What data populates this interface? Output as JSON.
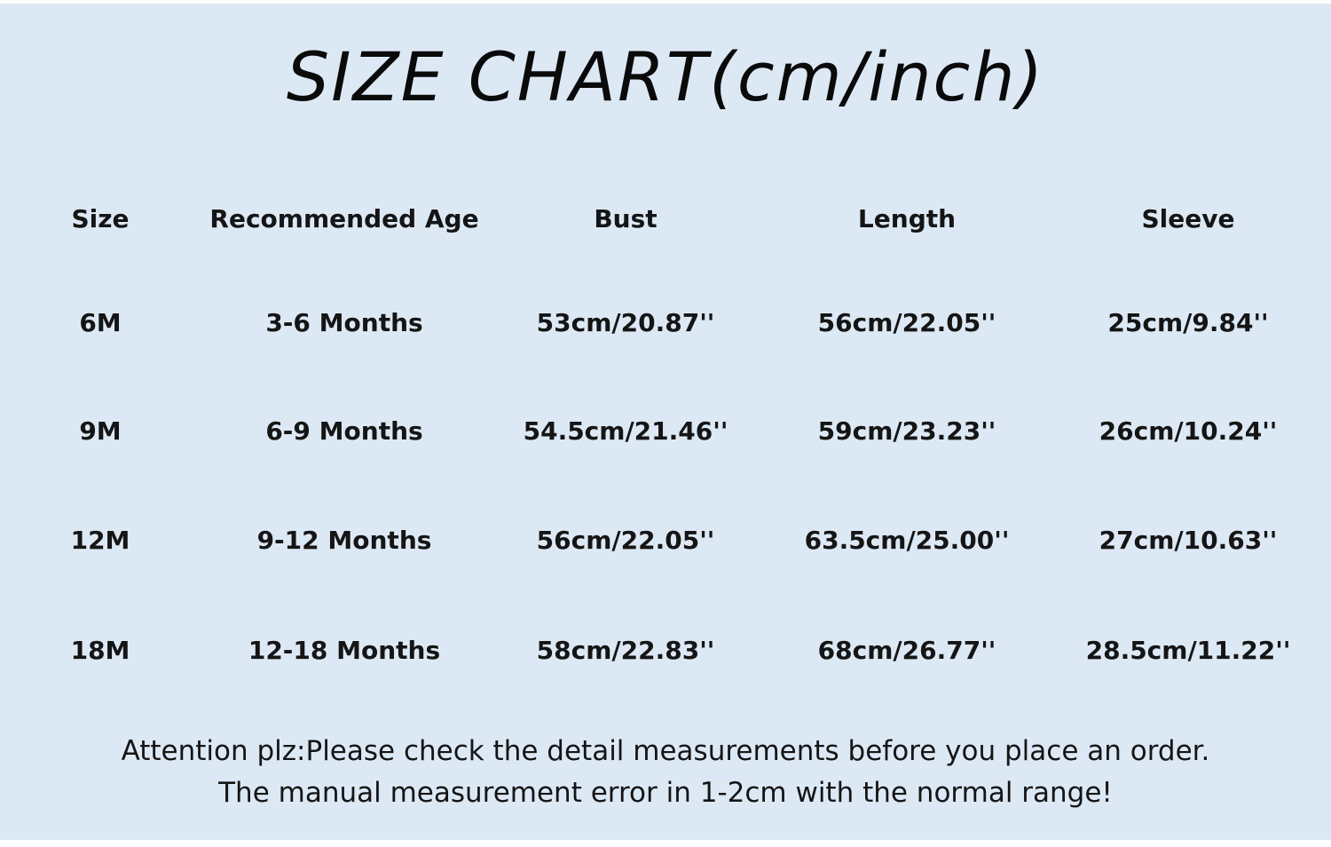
{
  "title": "SIZE CHART(cm/inch)",
  "headers": [
    "Size",
    "Recommended Age",
    "Bust",
    "Length",
    "Sleeve"
  ],
  "rows": [
    [
      "6M",
      "3-6 Months",
      "53cm/20.87''",
      "56cm/22.05''",
      "25cm/9.84''"
    ],
    [
      "9M",
      "6-9 Months",
      "54.5cm/21.46''",
      "59cm/23.23''",
      "26cm/10.24''"
    ],
    [
      "12M",
      "9-12 Months",
      "56cm/22.05''",
      "63.5cm/25.00''",
      "27cm/10.63''"
    ],
    [
      "18M",
      "12-18 Months",
      "58cm/22.83''",
      "68cm/26.77''",
      "28.5cm/11.22''"
    ]
  ],
  "notes": [
    "Attention plz:Please check the detail measurements before you place an order.",
    "The manual measurement error in 1-2cm with the normal range!"
  ],
  "colors": {
    "background": "#dce9f5",
    "text": "#151515"
  }
}
